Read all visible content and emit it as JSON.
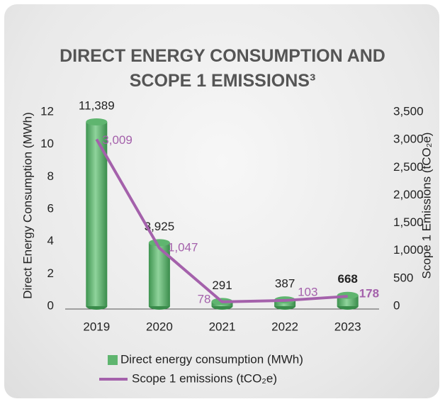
{
  "chart_data": {
    "type": "bar-line",
    "title": "DIRECT ENERGY CONSUMPTION AND SCOPE 1 EMISSIONS³",
    "categories": [
      "2019",
      "2020",
      "2021",
      "2022",
      "2023"
    ],
    "series": [
      {
        "name": "Direct energy consumption (MWh)",
        "type": "bar",
        "color": "#5fb56f",
        "values": [
          11.389,
          3.925,
          0.291,
          0.387,
          0.668
        ],
        "value_labels": [
          "11,389",
          "3,925",
          "291",
          "387",
          "668"
        ]
      },
      {
        "name": "Scope 1 emissions (tCO₂e)",
        "type": "line",
        "axis": "y2",
        "color": "#a461ab",
        "values": [
          3009,
          1047,
          78,
          103,
          178
        ],
        "value_labels": [
          "3,009",
          "1,047",
          "78",
          "103",
          "178"
        ]
      }
    ],
    "ylabel": "Direct Energy Consumption (MWh)",
    "y2label": "Scope 1 Emissions (tCO₂e)",
    "ylim": [
      0,
      12
    ],
    "yticks": [
      0,
      2,
      4,
      6,
      8,
      10,
      12
    ],
    "y2lim": [
      0,
      3500
    ],
    "y2ticks": [
      0,
      500,
      {
        "value": 1000,
        "label": "1,000"
      },
      {
        "value": 1500,
        "label": "1,500"
      },
      {
        "value": 2000,
        "label": "2,000"
      },
      {
        "value": 2500,
        "label": "2,500"
      },
      {
        "value": 3000,
        "label": "3,000"
      },
      {
        "value": 3500,
        "label": "3,500"
      }
    ],
    "legend": "bottom"
  }
}
